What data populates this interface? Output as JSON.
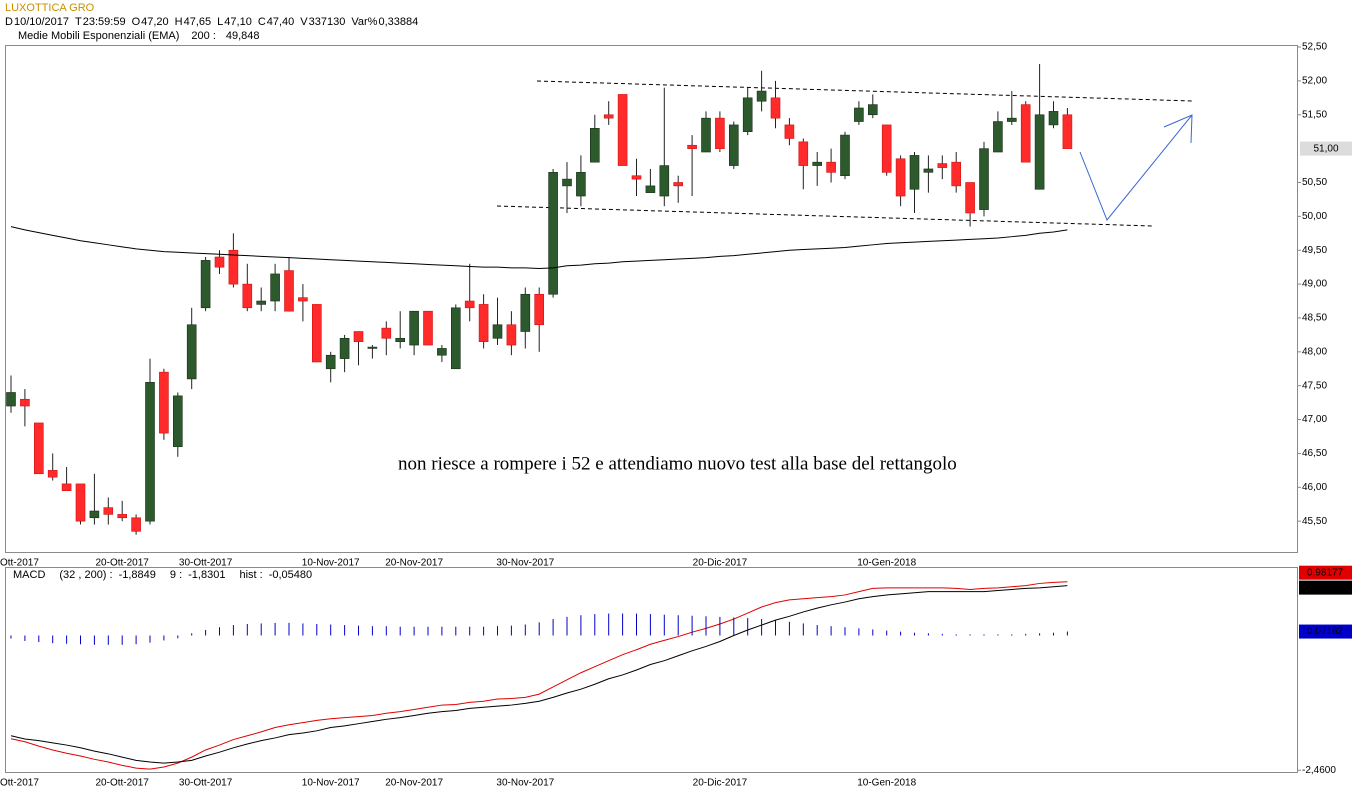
{
  "chart_data": [
    {
      "type": "candlestick",
      "title": "LUXOTTICA GRO",
      "readout": [
        {
          "key": "D",
          "text": "10/10/2017"
        },
        {
          "key": "T",
          "text": "23:59:59"
        },
        {
          "key": "O",
          "text": "47,20"
        },
        {
          "key": "H",
          "text": "47,65"
        },
        {
          "key": "L",
          "text": "47,10"
        },
        {
          "key": "C",
          "text": "47,40"
        },
        {
          "key": "V",
          "text": "337130"
        },
        {
          "key": "Var%",
          "text": "0,33884"
        }
      ],
      "annotation": "non riesce a rompere i 52 e attendiamo nuovo test alla base del rettangolo",
      "categories": [
        "Ott-2017",
        null,
        null,
        null,
        null,
        null,
        null,
        null,
        "20-Ott-2017",
        null,
        null,
        null,
        null,
        null,
        "30-Ott-2017",
        null,
        null,
        null,
        null,
        null,
        null,
        null,
        null,
        "10-Nov-2017",
        null,
        null,
        null,
        null,
        null,
        "20-Nov-2017",
        null,
        null,
        null,
        null,
        null,
        null,
        null,
        "30-Nov-2017",
        null,
        null,
        null,
        null,
        null,
        null,
        null,
        null,
        null,
        null,
        null,
        null,
        null,
        "20-Dic-2017",
        null,
        null,
        null,
        null,
        null,
        null,
        null,
        null,
        null,
        null,
        null,
        "10-Gen-2018",
        null,
        null,
        null,
        null,
        null,
        null,
        null,
        null,
        null,
        null,
        null,
        null,
        null
      ],
      "open": [
        47.2,
        47.3,
        46.95,
        46.25,
        46.05,
        46.05,
        45.55,
        45.7,
        45.6,
        45.55,
        45.5,
        47.7,
        46.6,
        47.6,
        48.65,
        49.4,
        49.5,
        49.0,
        48.7,
        48.75,
        49.2,
        48.8,
        48.7,
        47.75,
        47.9,
        48.3,
        48.05,
        48.35,
        48.15,
        48.1,
        48.6,
        47.95,
        47.75,
        48.75,
        48.7,
        48.2,
        48.4,
        48.3,
        48.85,
        48.85,
        50.45,
        50.3,
        50.8,
        51.5,
        51.8,
        50.6,
        50.35,
        50.3,
        50.5,
        51.05,
        50.95,
        51.45,
        50.75,
        51.25,
        51.7,
        51.75,
        51.35,
        51.1,
        50.75,
        50.8,
        50.6,
        51.4,
        51.5,
        51.35,
        50.85,
        50.4,
        50.65,
        50.78,
        50.8,
        50.5,
        50.1,
        50.95,
        51.4,
        51.65,
        50.4,
        51.35,
        51.5
      ],
      "high": [
        47.65,
        47.45,
        46.95,
        46.5,
        46.3,
        46.05,
        46.2,
        45.85,
        45.8,
        45.6,
        47.9,
        47.75,
        47.4,
        48.65,
        49.4,
        49.5,
        49.75,
        49.3,
        48.95,
        49.3,
        49.4,
        49.0,
        48.7,
        48.0,
        48.25,
        48.3,
        48.1,
        48.45,
        48.6,
        48.6,
        48.6,
        48.1,
        48.7,
        49.3,
        48.85,
        48.8,
        48.6,
        48.95,
        48.95,
        50.7,
        50.8,
        50.9,
        51.5,
        51.7,
        51.8,
        50.85,
        50.7,
        51.9,
        50.6,
        51.2,
        51.55,
        51.55,
        51.4,
        51.9,
        52.15,
        52.0,
        51.45,
        51.15,
        50.95,
        51.0,
        51.25,
        51.7,
        51.8,
        51.35,
        50.9,
        50.95,
        50.9,
        50.9,
        50.95,
        50.5,
        51.1,
        51.55,
        51.85,
        51.7,
        52.25,
        51.7,
        51.6
      ],
      "low": [
        47.1,
        46.9,
        46.2,
        46.1,
        45.95,
        45.45,
        45.45,
        45.45,
        45.5,
        45.3,
        45.45,
        46.7,
        46.45,
        47.45,
        48.6,
        49.15,
        48.95,
        48.6,
        48.6,
        48.6,
        48.6,
        48.45,
        47.85,
        47.55,
        47.7,
        47.8,
        47.9,
        47.95,
        48.05,
        47.95,
        48.1,
        47.85,
        47.75,
        48.45,
        48.05,
        48.1,
        47.95,
        48.05,
        48.0,
        48.8,
        50.05,
        50.15,
        50.8,
        51.35,
        50.75,
        50.3,
        50.35,
        50.15,
        50.2,
        50.3,
        50.95,
        50.95,
        50.7,
        51.2,
        51.55,
        51.3,
        51.05,
        50.4,
        50.45,
        50.5,
        50.55,
        51.35,
        51.45,
        50.6,
        50.15,
        50.05,
        50.35,
        50.55,
        50.35,
        49.85,
        50.0,
        50.95,
        51.35,
        50.8,
        50.4,
        51.3,
        51.0
      ],
      "close": [
        47.4,
        47.2,
        46.2,
        46.15,
        45.95,
        45.5,
        45.65,
        45.6,
        45.55,
        45.35,
        47.55,
        46.8,
        47.35,
        48.4,
        49.35,
        49.25,
        49.0,
        48.65,
        48.75,
        49.15,
        48.6,
        48.75,
        47.85,
        47.95,
        48.2,
        48.15,
        48.07,
        48.2,
        48.2,
        48.6,
        48.1,
        48.05,
        48.65,
        48.65,
        48.15,
        48.4,
        48.1,
        48.85,
        48.4,
        50.65,
        50.55,
        50.65,
        51.3,
        51.45,
        50.75,
        50.55,
        50.45,
        50.75,
        50.45,
        51.0,
        51.45,
        51.0,
        51.35,
        51.75,
        51.85,
        51.45,
        51.15,
        50.75,
        50.8,
        50.65,
        51.2,
        51.6,
        51.65,
        50.65,
        50.3,
        50.9,
        50.7,
        50.72,
        50.45,
        50.05,
        51.0,
        51.4,
        51.45,
        50.8,
        51.5,
        51.55,
        51.0
      ],
      "up_color": "#2c5a2c",
      "down_color": "#ff2b2b",
      "ema": {
        "name": "Medie Mobili Esponenziali (EMA)",
        "period_label": "200 :",
        "value_label": "49,848",
        "color": "#000000",
        "values": [
          49.848,
          49.8,
          49.76,
          49.72,
          49.68,
          49.64,
          49.61,
          49.58,
          49.55,
          49.52,
          49.5,
          49.48,
          49.47,
          49.46,
          49.45,
          49.44,
          49.43,
          49.42,
          49.41,
          49.4,
          49.39,
          49.38,
          49.37,
          49.36,
          49.35,
          49.34,
          49.33,
          49.32,
          49.31,
          49.3,
          49.29,
          49.28,
          49.27,
          49.26,
          49.25,
          49.25,
          49.24,
          49.24,
          49.23,
          49.24,
          49.27,
          49.28,
          49.3,
          49.31,
          49.33,
          49.34,
          49.35,
          49.36,
          49.37,
          49.38,
          49.39,
          49.41,
          49.42,
          49.44,
          49.46,
          49.48,
          49.5,
          49.51,
          49.52,
          49.53,
          49.54,
          49.56,
          49.58,
          49.6,
          49.61,
          49.62,
          49.63,
          49.64,
          49.65,
          49.66,
          49.67,
          49.68,
          49.7,
          49.72,
          49.75,
          49.77,
          49.8
        ]
      },
      "price_marker": {
        "value": 51.0,
        "label": "51,00"
      },
      "ylim": [
        45.03,
        52.53
      ],
      "yticks": [
        {
          "value": 52.5,
          "label": "52,50"
        },
        {
          "value": 52.0,
          "label": "52,00"
        },
        {
          "value": 51.5,
          "label": "51,50"
        },
        {
          "value": 50.5,
          "label": "50,50"
        },
        {
          "value": 50.0,
          "label": "50,00"
        },
        {
          "value": 49.5,
          "label": "49,50"
        },
        {
          "value": 49.0,
          "label": "49,00"
        },
        {
          "value": 48.5,
          "label": "48,50"
        },
        {
          "value": 48.0,
          "label": "48,00"
        },
        {
          "value": 47.5,
          "label": "47,50"
        },
        {
          "value": 47.0,
          "label": "47,00"
        },
        {
          "value": 46.5,
          "label": "46,50"
        },
        {
          "value": 46.0,
          "label": "46,00"
        },
        {
          "value": 45.5,
          "label": "45,50"
        }
      ]
    },
    {
      "type": "macd",
      "title": "MACD",
      "series": [
        {
          "name": "(32 , 200) :",
          "color": "#e00000",
          "style": "line",
          "values": [
            -1.8849,
            -1.94,
            -2.02,
            -2.09,
            -2.15,
            -2.2,
            -2.26,
            -2.31,
            -2.37,
            -2.42,
            -2.44,
            -2.4,
            -2.33,
            -2.22,
            -2.09,
            -2.0,
            -1.9,
            -1.83,
            -1.76,
            -1.68,
            -1.63,
            -1.59,
            -1.55,
            -1.52,
            -1.5,
            -1.48,
            -1.46,
            -1.42,
            -1.39,
            -1.35,
            -1.31,
            -1.27,
            -1.26,
            -1.22,
            -1.2,
            -1.16,
            -1.15,
            -1.13,
            -1.07,
            -0.94,
            -0.81,
            -0.68,
            -0.57,
            -0.46,
            -0.35,
            -0.26,
            -0.16,
            -0.09,
            -0.02,
            0.06,
            0.13,
            0.21,
            0.3,
            0.41,
            0.52,
            0.6,
            0.65,
            0.67,
            0.69,
            0.71,
            0.74,
            0.8,
            0.86,
            0.87,
            0.87,
            0.87,
            0.87,
            0.87,
            0.86,
            0.84,
            0.86,
            0.87,
            0.89,
            0.91,
            0.95,
            0.97,
            0.98177
          ],
          "value_labels": [
            "-1,8849",
            null,
            null,
            null,
            null,
            null,
            null,
            null,
            null,
            null,
            null,
            null,
            null,
            null,
            null,
            null,
            null,
            null,
            null,
            null,
            null,
            null,
            null,
            null,
            null,
            null,
            null,
            null,
            null,
            null,
            null,
            null,
            null,
            null,
            null,
            null,
            null,
            null,
            null,
            null,
            null,
            null,
            null,
            null,
            null,
            null,
            null,
            null,
            null,
            null,
            null,
            null,
            null,
            null,
            null,
            null,
            null,
            null,
            null,
            null,
            null,
            null,
            null,
            null,
            null,
            null,
            null,
            null,
            null,
            null,
            null,
            null,
            null,
            null,
            null,
            null,
            "0,98177"
          ]
        },
        {
          "name": "9 :",
          "color": "#000000",
          "style": "line",
          "values": [
            -1.8301,
            -1.89,
            -1.92,
            -1.96,
            -2.0,
            -2.05,
            -2.11,
            -2.16,
            -2.22,
            -2.28,
            -2.31,
            -2.33,
            -2.31,
            -2.28,
            -2.2,
            -2.13,
            -2.05,
            -1.98,
            -1.92,
            -1.87,
            -1.81,
            -1.78,
            -1.74,
            -1.68,
            -1.65,
            -1.61,
            -1.57,
            -1.53,
            -1.5,
            -1.46,
            -1.42,
            -1.39,
            -1.37,
            -1.33,
            -1.31,
            -1.29,
            -1.27,
            -1.24,
            -1.2,
            -1.13,
            -1.05,
            -0.98,
            -0.89,
            -0.79,
            -0.72,
            -0.63,
            -0.53,
            -0.46,
            -0.37,
            -0.28,
            -0.2,
            -0.11,
            0.0,
            0.1,
            0.19,
            0.28,
            0.35,
            0.43,
            0.5,
            0.56,
            0.61,
            0.67,
            0.71,
            0.74,
            0.76,
            0.78,
            0.8,
            0.8,
            0.8,
            0.8,
            0.8,
            0.82,
            0.84,
            0.86,
            0.87,
            0.89,
            0.91015
          ],
          "value_labels": [
            "-1,8301",
            null,
            null,
            null,
            null,
            null,
            null,
            null,
            null,
            null,
            null,
            null,
            null,
            null,
            null,
            null,
            null,
            null,
            null,
            null,
            null,
            null,
            null,
            null,
            null,
            null,
            null,
            null,
            null,
            null,
            null,
            null,
            null,
            null,
            null,
            null,
            null,
            null,
            null,
            null,
            null,
            null,
            null,
            null,
            null,
            null,
            null,
            null,
            null,
            null,
            null,
            null,
            null,
            null,
            null,
            null,
            null,
            null,
            null,
            null,
            null,
            null,
            null,
            null,
            null,
            null,
            null,
            null,
            null,
            null,
            null,
            null,
            null,
            null,
            null,
            null,
            "0,91015"
          ]
        },
        {
          "name": "hist :",
          "color": "#0000c8",
          "style": "bars",
          "values": [
            -0.0548,
            -0.1,
            -0.12,
            -0.14,
            -0.15,
            -0.16,
            -0.17,
            -0.17,
            -0.17,
            -0.16,
            -0.13,
            -0.09,
            -0.05,
            0.04,
            0.1,
            0.15,
            0.19,
            0.21,
            0.22,
            0.23,
            0.23,
            0.22,
            0.21,
            0.2,
            0.19,
            0.18,
            0.17,
            0.17,
            0.16,
            0.16,
            0.16,
            0.16,
            0.16,
            0.16,
            0.16,
            0.17,
            0.18,
            0.2,
            0.24,
            0.3,
            0.34,
            0.37,
            0.39,
            0.4,
            0.4,
            0.4,
            0.39,
            0.38,
            0.37,
            0.36,
            0.35,
            0.34,
            0.33,
            0.32,
            0.3,
            0.28,
            0.25,
            0.22,
            0.19,
            0.17,
            0.15,
            0.13,
            0.11,
            0.09,
            0.07,
            0.05,
            0.04,
            0.03,
            0.02,
            0.02,
            0.02,
            0.02,
            0.02,
            0.03,
            0.04,
            0.05,
            0.07162
          ],
          "value_labels": [
            "-0,05480",
            null,
            null,
            null,
            null,
            null,
            null,
            null,
            null,
            null,
            null,
            null,
            null,
            null,
            null,
            null,
            null,
            null,
            null,
            null,
            null,
            null,
            null,
            null,
            null,
            null,
            null,
            null,
            null,
            null,
            null,
            null,
            null,
            null,
            null,
            null,
            null,
            null,
            null,
            null,
            null,
            null,
            null,
            null,
            null,
            null,
            null,
            null,
            null,
            null,
            null,
            null,
            null,
            null,
            null,
            null,
            null,
            null,
            null,
            null,
            null,
            null,
            null,
            null,
            null,
            null,
            null,
            null,
            null,
            null,
            null,
            null,
            null,
            null,
            null,
            null,
            "0,07162"
          ]
        }
      ],
      "ylim": [
        -2.51,
        1.25
      ],
      "yticks": [
        {
          "value": -2.46,
          "label": "-2,4600"
        }
      ]
    }
  ]
}
